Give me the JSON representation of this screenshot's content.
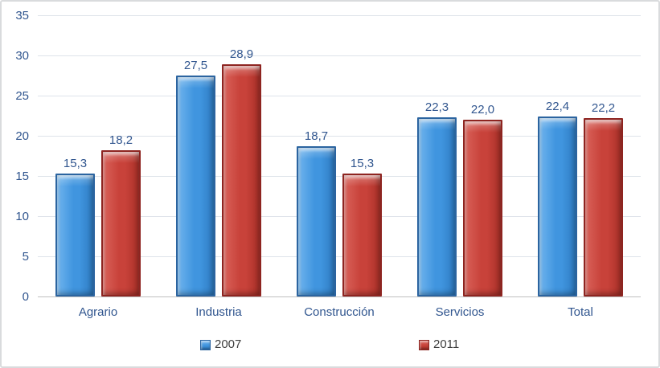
{
  "chart_data": {
    "type": "bar",
    "title": "",
    "categories": [
      "Agrario",
      "Industria",
      "Construcción",
      "Servicios",
      "Total"
    ],
    "series": [
      {
        "name": "2007",
        "values": [
          15.3,
          27.5,
          18.7,
          22.3,
          22.4
        ],
        "value_labels": [
          "15,3",
          "27,5",
          "18,7",
          "22,3",
          "22,4"
        ],
        "fill": "#4095DF",
        "fill_light": "#6FB4EE",
        "fill_dark": "#2E7BC1",
        "edge": "#2B64A0"
      },
      {
        "name": "2011",
        "values": [
          18.2,
          28.9,
          15.3,
          22.0,
          22.2
        ],
        "value_labels": [
          "18,2",
          "28,9",
          "15,3",
          "22,0",
          "22,2"
        ],
        "fill": "#C8423A",
        "fill_light": "#D9625A",
        "fill_dark": "#A93028",
        "edge": "#8E2420"
      }
    ],
    "ylim": [
      0,
      35
    ],
    "ytick_step": 5,
    "yticks": [
      "0",
      "5",
      "10",
      "15",
      "20",
      "25",
      "30",
      "35"
    ],
    "grid": true,
    "legend_position": "bottom",
    "label_color": "#31568F",
    "legend_text_color": "#3F3F3F",
    "gridline_color": "#DEE3EA",
    "axis_line_color": "#BFBFBF"
  }
}
